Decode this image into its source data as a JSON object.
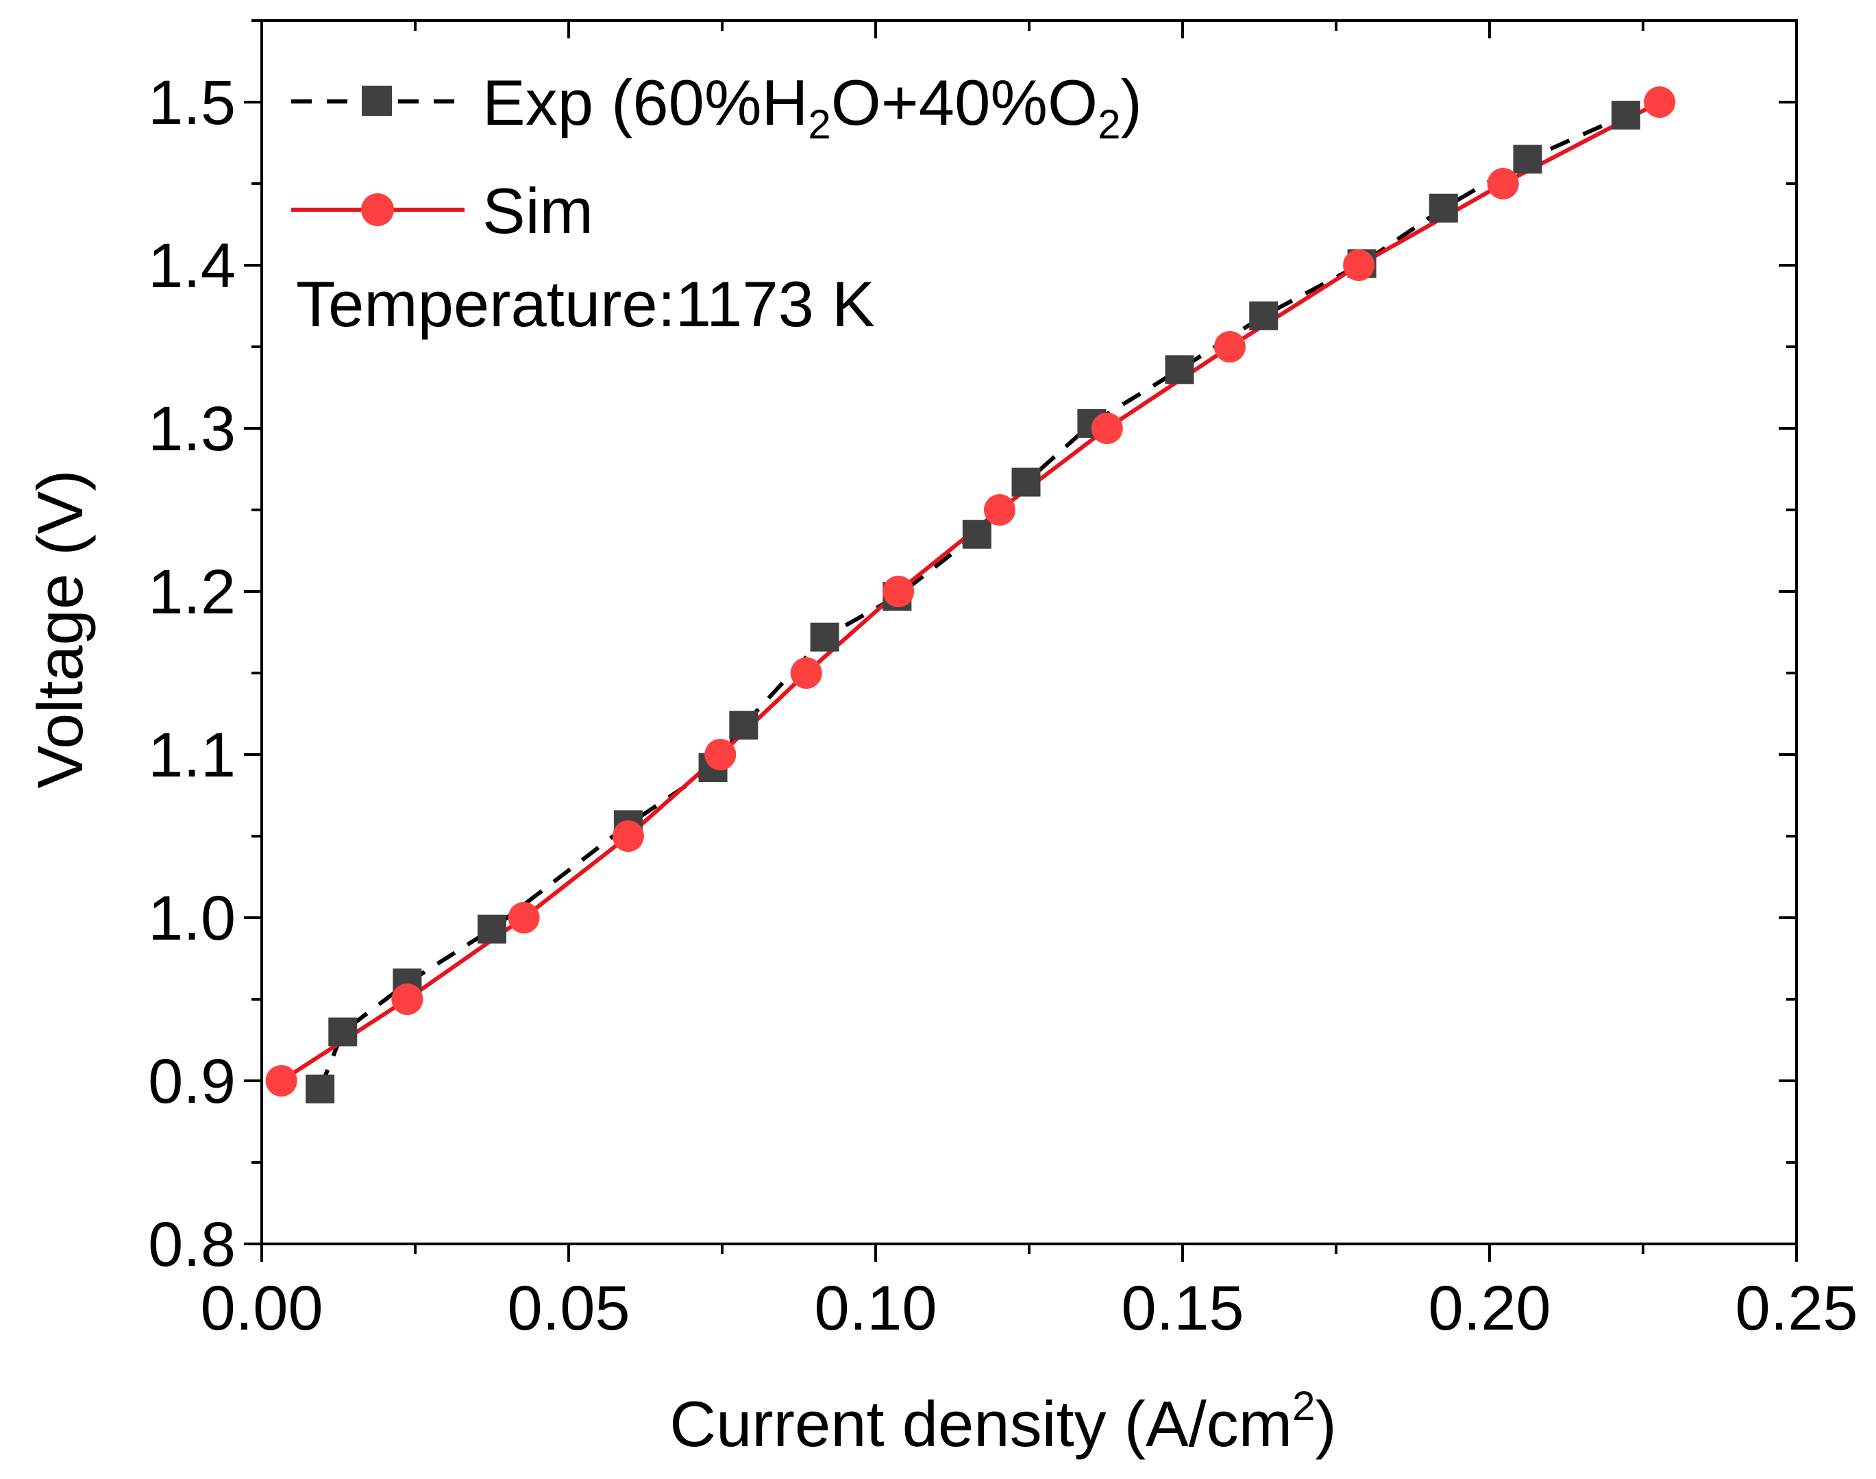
{
  "chart_data": {
    "type": "line",
    "xlabel": "Current density (A/cm",
    "xlabel_sup": "2",
    "xlabel_close": ")",
    "ylabel": "Voltage (V)",
    "xlim": [
      0.0,
      0.25
    ],
    "ylim": [
      0.8,
      1.55
    ],
    "x_ticks": [
      "0.00",
      "0.05",
      "0.10",
      "0.15",
      "0.20",
      "0.25"
    ],
    "x_tick_values": [
      0.0,
      0.05,
      0.1,
      0.15,
      0.2,
      0.25
    ],
    "y_ticks": [
      "0.8",
      "0.9",
      "1.0",
      "1.1",
      "1.2",
      "1.3",
      "1.4",
      "1.5"
    ],
    "y_tick_values": [
      0.8,
      0.9,
      1.0,
      1.1,
      1.2,
      1.3,
      1.4,
      1.5
    ],
    "annotation": "Temperature:1173 K",
    "legend_position": "top-left",
    "series": [
      {
        "name": "Exp (60%H2O+40%O2)",
        "label_main": "Exp (60%H",
        "label_sub1": "2",
        "label_mid": "O+40%O",
        "label_sub2": "2",
        "label_end": ")",
        "color": "#000000",
        "marker_color": "#404040",
        "marker": "square",
        "line_style": "dashed",
        "x": [
          0.0095,
          0.0132,
          0.0237,
          0.0375,
          0.0597,
          0.0735,
          0.0785,
          0.0917,
          0.1035,
          0.1165,
          0.1245,
          0.1352,
          0.1495,
          0.1632,
          0.1792,
          0.1925,
          0.2062,
          0.2222
        ],
        "y": [
          0.895,
          0.93,
          0.96,
          0.993,
          1.057,
          1.092,
          1.118,
          1.172,
          1.197,
          1.235,
          1.267,
          1.303,
          1.336,
          1.369,
          1.401,
          1.435,
          1.465,
          1.492
        ]
      },
      {
        "name": "Sim",
        "color": "#e8141c",
        "marker_color": "#ff4040",
        "marker": "circle",
        "line_style": "solid",
        "x": [
          0.0032,
          0.0237,
          0.0427,
          0.0597,
          0.0747,
          0.0887,
          0.1037,
          0.1202,
          0.1377,
          0.1577,
          0.1787,
          0.2022,
          0.2277
        ],
        "y": [
          0.9,
          0.95,
          1.0,
          1.05,
          1.1,
          1.15,
          1.2,
          1.25,
          1.3,
          1.35,
          1.4,
          1.45,
          1.5
        ]
      }
    ]
  }
}
